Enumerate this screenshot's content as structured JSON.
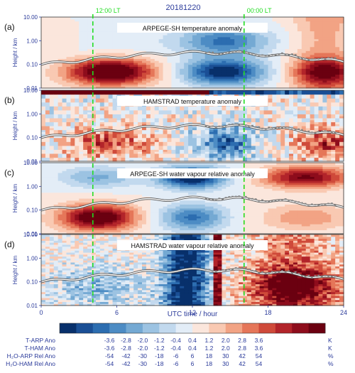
{
  "figure": {
    "date": "20181220",
    "x_axis_label": "UTC time / hour",
    "y_axis_label": "Height / km",
    "local_time_markers": [
      {
        "label": "12:00 LT",
        "utc_hour": 4.1
      },
      {
        "label": "00:00 LT",
        "utc_hour": 16.1
      }
    ],
    "marker_color": "#22dd22"
  },
  "chart_data": [
    {
      "type": "heatmap",
      "panel_label": "(a)",
      "title": "ARPEGE-SH  temperature anomaly",
      "x_range": [
        0,
        24
      ],
      "x_ticks": [
        0,
        6,
        12,
        18,
        24
      ],
      "y_scale": "log",
      "y_range": [
        0.01,
        10.0
      ],
      "y_ticks": [
        "0.01",
        "0.10",
        "1.00",
        "10.00"
      ],
      "pattern": "warm_day_cold_night"
    },
    {
      "type": "heatmap",
      "panel_label": "(b)",
      "title": "HAMSTRAD  temperature anomaly",
      "x_range": [
        0,
        24
      ],
      "x_ticks": [
        0,
        6,
        12,
        18,
        24
      ],
      "y_scale": "log",
      "y_range": [
        0.01,
        10.0
      ],
      "y_ticks": [
        "0.01",
        "0.10",
        "1.00",
        "10.00"
      ],
      "pattern": "noisy_observation"
    },
    {
      "type": "heatmap",
      "panel_label": "(c)",
      "title": "ARPEGE-SH water vapour relative anomaly",
      "x_range": [
        0,
        24
      ],
      "x_ticks": [
        0,
        6,
        12,
        18,
        24
      ],
      "y_scale": "log",
      "y_range": [
        0.01,
        10.0
      ],
      "y_ticks": [
        "0.01",
        "0.10",
        "1.00",
        "10.00"
      ],
      "pattern": "moist_day_dry_midday"
    },
    {
      "type": "heatmap",
      "panel_label": "(d)",
      "title": "HAMSTRAD water vapour relative anomaly",
      "x_range": [
        0,
        24
      ],
      "x_ticks": [
        0,
        6,
        12,
        18,
        24
      ],
      "y_scale": "log",
      "y_range": [
        0.01,
        10.0
      ],
      "y_ticks": [
        "0.01",
        "0.10",
        "1.00",
        "10.00"
      ],
      "pattern": "noisy_observation_vapour"
    }
  ],
  "colorbar": {
    "colors": [
      "#08306b",
      "#1a4f95",
      "#2c6db0",
      "#4d8cc4",
      "#74a9d3",
      "#9cc3e2",
      "#c2d9ee",
      "#e3edf7",
      "#fbe6dc",
      "#f9c9b2",
      "#f2a384",
      "#e57659",
      "#cf4a3a",
      "#b2242a",
      "#8e0d1c",
      "#6b0010"
    ],
    "rows": [
      {
        "name": "T-ARP Ano",
        "values": [
          "-3.6",
          "-2.8",
          "-2.0",
          "-1.2",
          "-0.4",
          "0.4",
          "1.2",
          "2.0",
          "2.8",
          "3.6"
        ],
        "unit": "K"
      },
      {
        "name": "T-HAM Ano",
        "values": [
          "-3.6",
          "-2.8",
          "-2.0",
          "-1.2",
          "-0.4",
          "0.4",
          "1.2",
          "2.0",
          "2.8",
          "3.6"
        ],
        "unit": "K"
      },
      {
        "name": "H₂O-ARP Rel Ano",
        "values": [
          "-54",
          "-42",
          "-30",
          "-18",
          "-6",
          "6",
          "18",
          "30",
          "42",
          "54"
        ],
        "unit": "%"
      },
      {
        "name": "H₂O-HAM Rel Ano",
        "values": [
          "-54",
          "-42",
          "-30",
          "-18",
          "-6",
          "6",
          "18",
          "30",
          "42",
          "54"
        ],
        "unit": "%"
      }
    ]
  }
}
